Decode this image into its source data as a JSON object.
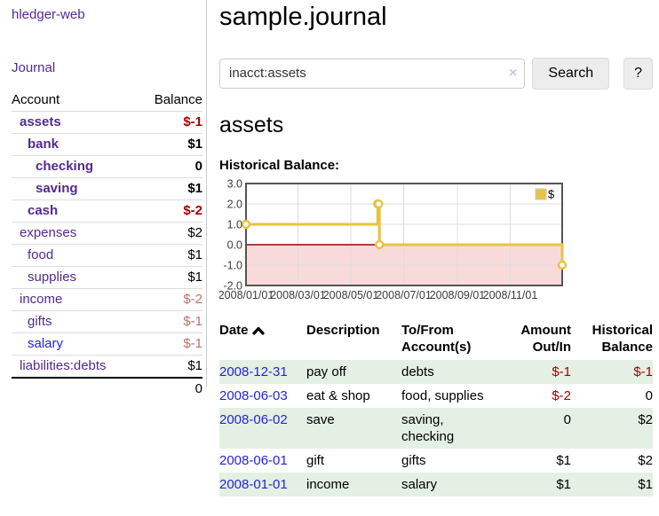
{
  "theme": {
    "purple": "#542a92",
    "blue": "#2424dc",
    "negStrong": "#a40000",
    "negSoft": "#bf7070",
    "rowStripe": "#e3f0e3"
  },
  "sidebar": {
    "app_title": "hledger-web",
    "journal_link": "Journal",
    "accounts": {
      "header_account": "Account",
      "header_balance": "Balance",
      "rows": [
        {
          "name": "assets",
          "balance": "$-1",
          "indent": 1,
          "bold": true,
          "name_color": "purple",
          "balance_color": "negstrong"
        },
        {
          "name": "bank",
          "balance": "$1",
          "indent": 2,
          "bold": true,
          "name_color": "purple",
          "balance_color": "normal"
        },
        {
          "name": "checking",
          "balance": "0",
          "indent": 3,
          "bold": true,
          "name_color": "purple",
          "balance_color": "normal"
        },
        {
          "name": "saving",
          "balance": "$1",
          "indent": 3,
          "bold": true,
          "name_color": "purple",
          "balance_color": "normal"
        },
        {
          "name": "cash",
          "balance": "$-2",
          "indent": 2,
          "bold": true,
          "name_color": "purple",
          "balance_color": "negstrong"
        },
        {
          "name": "expenses",
          "balance": "$2",
          "indent": 1,
          "bold": false,
          "name_color": "purple",
          "balance_color": "normal"
        },
        {
          "name": "food",
          "balance": "$1",
          "indent": 2,
          "bold": false,
          "name_color": "purple",
          "balance_color": "normal"
        },
        {
          "name": "supplies",
          "balance": "$1",
          "indent": 2,
          "bold": false,
          "name_color": "purple",
          "balance_color": "normal"
        },
        {
          "name": "income",
          "balance": "$-2",
          "indent": 1,
          "bold": false,
          "name_color": "purple",
          "balance_color": "negsoft"
        },
        {
          "name": "gifts",
          "balance": "$-1",
          "indent": 2,
          "bold": false,
          "name_color": "purple",
          "balance_color": "negsoft"
        },
        {
          "name": "salary",
          "balance": "$-1",
          "indent": 2,
          "bold": false,
          "name_color": "blue",
          "balance_color": "negsoft"
        },
        {
          "name": "liabilities:debts",
          "balance": "$1",
          "indent": 1,
          "bold": false,
          "name_color": "purple",
          "balance_color": "normal"
        }
      ],
      "total": "0"
    }
  },
  "main": {
    "title": "sample.journal",
    "search": {
      "value": "inacct:assets",
      "clear_icon": "×",
      "button": "Search",
      "help": "?"
    },
    "account_heading": "assets",
    "chart_heading": "Historical Balance:"
  },
  "chart_data": {
    "type": "line",
    "step": true,
    "title": "Historical Balance:",
    "series": [
      {
        "name": "$",
        "color": "#e7c33f",
        "points": [
          [
            "2008-01-01",
            1
          ],
          [
            "2008-06-01",
            2
          ],
          [
            "2008-06-02",
            2
          ],
          [
            "2008-06-03",
            0
          ],
          [
            "2008-12-31",
            -1
          ]
        ]
      }
    ],
    "x_range": [
      "2008-01-01",
      "2008-12-31"
    ],
    "x_tick_labels": [
      "2008/01/01",
      "2008/03/01",
      "2008/05/01",
      "2008/07/01",
      "2008/09/01",
      "2008/11/01"
    ],
    "x_tick_dates": [
      "2008-01-01",
      "2008-03-01",
      "2008-05-01",
      "2008-07-01",
      "2008-09-01",
      "2008-11-01"
    ],
    "y_tick_labels": [
      "3.0",
      "2.0",
      "1.0",
      "0.0",
      "-1.0",
      "-2.0"
    ],
    "y_tick_values": [
      3,
      2,
      1,
      0,
      -1,
      -2
    ],
    "ylim": [
      -2,
      3
    ],
    "grid": true,
    "legend": {
      "label": "$",
      "position": "top-right"
    },
    "colors": {
      "line": "#e7c33f",
      "marker_fill": "#ffffff",
      "negative_region": "#f9dada",
      "zero_line": "#990000",
      "gridline": "#dedede",
      "border": "#545454",
      "tick_text": "#3c3c3c"
    }
  },
  "transactions": {
    "headers": {
      "date": "Date",
      "description": "Description",
      "tofrom1": "To/From",
      "tofrom2": "Account(s)",
      "amount1": "Amount",
      "amount2": "Out/In",
      "hist1": "Historical",
      "hist2": "Balance"
    },
    "sort_icon": "chevron-up",
    "rows": [
      {
        "date": "2008-12-31",
        "description": "pay off",
        "accounts": "debts",
        "amount": "$-1",
        "amount_neg": true,
        "balance": "$-1",
        "balance_neg": true
      },
      {
        "date": "2008-06-03",
        "description": "eat & shop",
        "accounts": "food, supplies",
        "amount": "$-2",
        "amount_neg": true,
        "balance": "0",
        "balance_neg": false
      },
      {
        "date": "2008-06-02",
        "description": "save",
        "accounts": "saving, checking",
        "amount": "0",
        "amount_neg": false,
        "balance": "$2",
        "balance_neg": false
      },
      {
        "date": "2008-06-01",
        "description": "gift",
        "accounts": "gifts",
        "amount": "$1",
        "amount_neg": false,
        "balance": "$2",
        "balance_neg": false
      },
      {
        "date": "2008-01-01",
        "description": "income",
        "accounts": "salary",
        "amount": "$1",
        "amount_neg": false,
        "balance": "$1",
        "balance_neg": false
      }
    ]
  }
}
